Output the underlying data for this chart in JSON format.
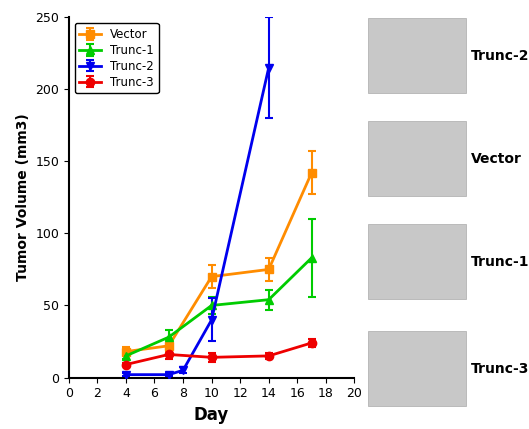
{
  "series": [
    {
      "label": "Vector",
      "color": "#FF8C00",
      "marker": "s",
      "x": [
        4,
        7,
        10,
        14,
        17
      ],
      "y": [
        18,
        22,
        70,
        75,
        142
      ],
      "yerr": [
        3,
        4,
        8,
        8,
        15
      ]
    },
    {
      "label": "Trunc-1",
      "color": "#00CC00",
      "marker": "^",
      "x": [
        4,
        7,
        10,
        14,
        17
      ],
      "y": [
        15,
        28,
        50,
        54,
        83
      ],
      "yerr": [
        2,
        5,
        6,
        7,
        27
      ]
    },
    {
      "label": "Trunc-2",
      "color": "#0000EE",
      "marker": "v",
      "x": [
        4,
        7,
        8,
        10,
        14
      ],
      "y": [
        2,
        2,
        5,
        40,
        215
      ],
      "yerr": [
        1,
        1,
        2,
        15,
        35
      ]
    },
    {
      "label": "Trunc-3",
      "color": "#EE0000",
      "marker": "o",
      "x": [
        4,
        7,
        10,
        14,
        17
      ],
      "y": [
        9,
        16,
        14,
        15,
        24
      ],
      "yerr": [
        1,
        3,
        3,
        2,
        3
      ]
    }
  ],
  "xlabel": "Day",
  "ylabel": "Tumor Volume (mm3)",
  "xlim": [
    0,
    20
  ],
  "ylim": [
    0,
    250
  ],
  "xticks": [
    0,
    2,
    4,
    6,
    8,
    10,
    12,
    14,
    16,
    18,
    20
  ],
  "yticks": [
    0,
    50,
    100,
    150,
    200,
    250
  ],
  "background_color": "#FFFFFF",
  "linewidth": 2.0,
  "markersize": 6,
  "capsize": 3,
  "image_labels": [
    "Trunc-2",
    "Vector",
    "Trunc-1",
    "Trunc-3"
  ],
  "image_colors": [
    "#B83030",
    "#C89070",
    "#C09878",
    "#A07850"
  ],
  "image_sizes": [
    14,
    9,
    7,
    4
  ],
  "box_color": "#C8C8C8",
  "box_edge_color": "#AAAAAA"
}
